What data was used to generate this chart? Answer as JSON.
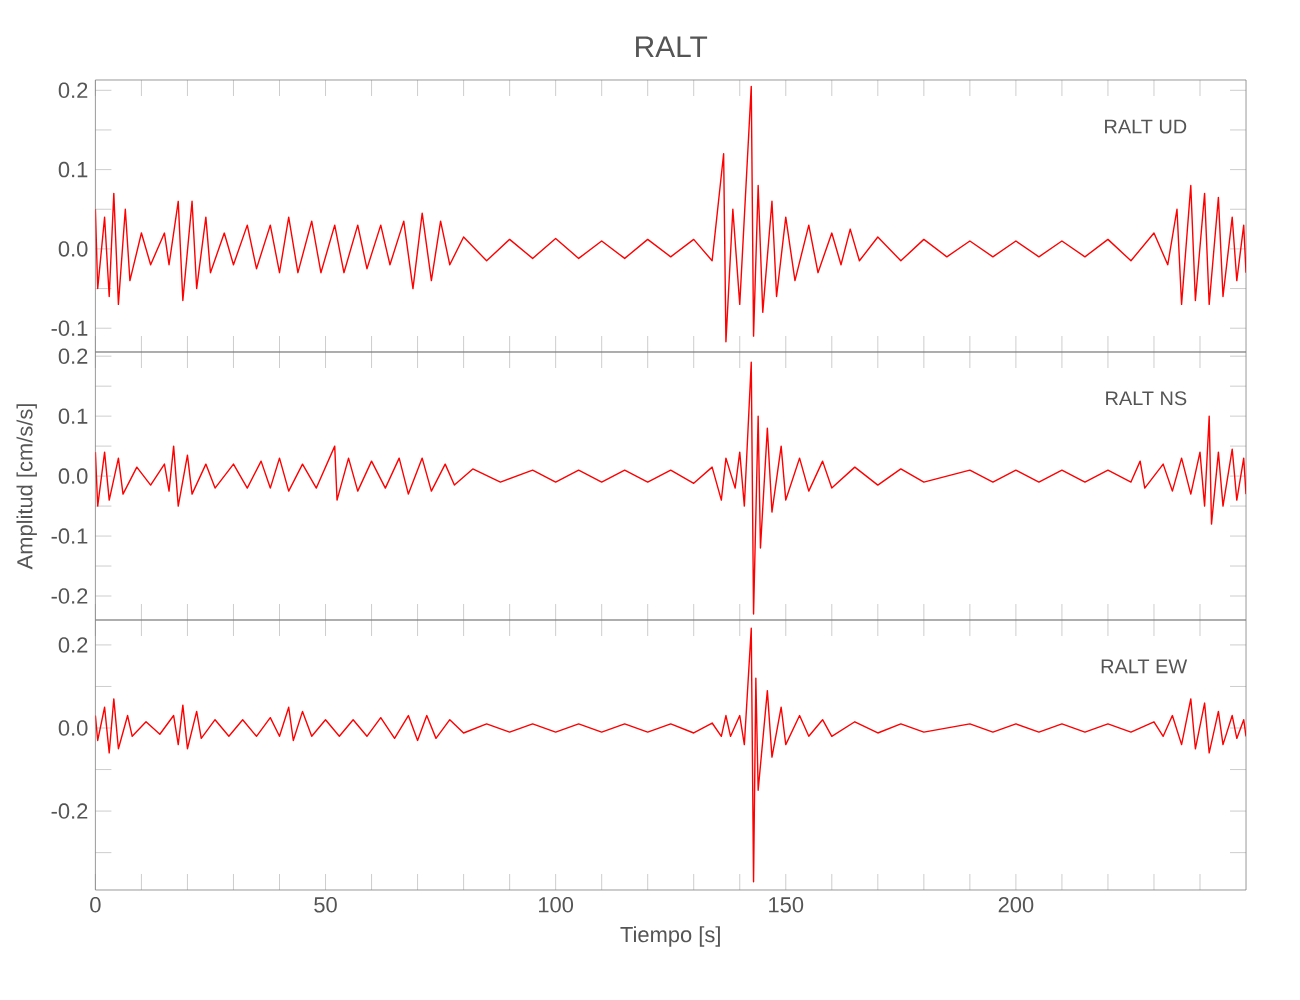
{
  "chart_data": [
    {
      "type": "line",
      "title": "RALT",
      "annotations": [
        "RALT   UD"
      ],
      "color": "#ff0000",
      "marker": "none",
      "tick_labels": "y",
      "xlim": [
        0,
        250
      ],
      "ylim": [
        -0.13,
        0.213
      ],
      "xticks": [
        0,
        {
          "value": 10,
          "label": null
        },
        {
          "value": 20,
          "label": null
        },
        {
          "value": 30,
          "label": null
        },
        {
          "value": 40,
          "label": null
        },
        50,
        {
          "value": 60,
          "label": null
        },
        {
          "value": 70,
          "label": null
        },
        {
          "value": 80,
          "label": null
        },
        {
          "value": 90,
          "label": null
        },
        100,
        {
          "value": 110,
          "label": null
        },
        {
          "value": 120,
          "label": null
        },
        {
          "value": 130,
          "label": null
        },
        {
          "value": 140,
          "label": null
        },
        150,
        {
          "value": 160,
          "label": null
        },
        {
          "value": 170,
          "label": null
        },
        {
          "value": 180,
          "label": null
        },
        {
          "value": 190,
          "label": null
        },
        200,
        {
          "value": 210,
          "label": null
        },
        {
          "value": 220,
          "label": null
        },
        {
          "value": 230,
          "label": null
        },
        {
          "value": 240,
          "label": null
        }
      ],
      "yticks": [
        -0.1,
        {
          "value": -0.05,
          "label": null
        },
        {
          "value": 0,
          "label": "0.0"
        },
        {
          "value": 0.05,
          "label": null
        },
        0.1,
        {
          "value": 0.15,
          "label": null
        },
        0.2
      ],
      "x": [
        0,
        0.5,
        2,
        3,
        4,
        5,
        6.5,
        7.5,
        10,
        12,
        15,
        16,
        18,
        19,
        21,
        22,
        24,
        25,
        28,
        30,
        33,
        35,
        38,
        40,
        42,
        44,
        47,
        49,
        52,
        54,
        57,
        59,
        62,
        64,
        67,
        69,
        71,
        73,
        75,
        77,
        80,
        85,
        90,
        95,
        100,
        105,
        110,
        115,
        120,
        125,
        130,
        134,
        136.5,
        137,
        138.5,
        140,
        142.5,
        143,
        144,
        145,
        147,
        148,
        150,
        152,
        155,
        157,
        160,
        162,
        164,
        166,
        170,
        175,
        180,
        185,
        190,
        195,
        200,
        205,
        210,
        215,
        220,
        225,
        230,
        233,
        235,
        236,
        238,
        239,
        241,
        242,
        244,
        245,
        247,
        248,
        249.5,
        250
      ],
      "values": [
        0.05,
        -0.05,
        0.04,
        -0.06,
        0.07,
        -0.07,
        0.05,
        -0.04,
        0.02,
        -0.02,
        0.02,
        -0.02,
        0.06,
        -0.065,
        0.06,
        -0.05,
        0.04,
        -0.03,
        0.02,
        -0.02,
        0.03,
        -0.025,
        0.03,
        -0.03,
        0.04,
        -0.03,
        0.035,
        -0.03,
        0.03,
        -0.03,
        0.03,
        -0.025,
        0.03,
        -0.02,
        0.035,
        -0.05,
        0.045,
        -0.04,
        0.035,
        -0.02,
        0.015,
        -0.015,
        0.012,
        -0.012,
        0.013,
        -0.012,
        0.01,
        -0.012,
        0.012,
        -0.01,
        0.012,
        -0.015,
        0.12,
        -0.117,
        0.05,
        -0.07,
        0.205,
        -0.11,
        0.08,
        -0.08,
        0.06,
        -0.06,
        0.04,
        -0.04,
        0.03,
        -0.03,
        0.02,
        -0.02,
        0.025,
        -0.015,
        0.015,
        -0.015,
        0.012,
        -0.01,
        0.01,
        -0.01,
        0.01,
        -0.01,
        0.01,
        -0.01,
        0.012,
        -0.015,
        0.02,
        -0.02,
        0.05,
        -0.07,
        0.08,
        -0.065,
        0.07,
        -0.07,
        0.065,
        -0.06,
        0.04,
        -0.04,
        0.03,
        -0.03
      ]
    },
    {
      "type": "line",
      "ylabel": "Amplitud [cm/s/s]",
      "annotations": [
        "RALT   NS"
      ],
      "color": "#ff0000",
      "marker": "none",
      "tick_labels": "y",
      "xlim": [
        0,
        250
      ],
      "ylim": [
        -0.24,
        0.207
      ],
      "xticks": [
        0,
        {
          "value": 10,
          "label": null
        },
        {
          "value": 20,
          "label": null
        },
        {
          "value": 30,
          "label": null
        },
        {
          "value": 40,
          "label": null
        },
        50,
        {
          "value": 60,
          "label": null
        },
        {
          "value": 70,
          "label": null
        },
        {
          "value": 80,
          "label": null
        },
        {
          "value": 90,
          "label": null
        },
        100,
        {
          "value": 110,
          "label": null
        },
        {
          "value": 120,
          "label": null
        },
        {
          "value": 130,
          "label": null
        },
        {
          "value": 140,
          "label": null
        },
        150,
        {
          "value": 160,
          "label": null
        },
        {
          "value": 170,
          "label": null
        },
        {
          "value": 180,
          "label": null
        },
        {
          "value": 190,
          "label": null
        },
        200,
        {
          "value": 210,
          "label": null
        },
        {
          "value": 220,
          "label": null
        },
        {
          "value": 230,
          "label": null
        },
        {
          "value": 240,
          "label": null
        }
      ],
      "yticks": [
        -0.2,
        {
          "value": -0.15,
          "label": null
        },
        -0.1,
        {
          "value": -0.05,
          "label": null
        },
        {
          "value": 0,
          "label": "0.0"
        },
        {
          "value": 0.05,
          "label": null
        },
        0.1,
        {
          "value": 0.15,
          "label": null
        },
        0.2
      ],
      "x": [
        0,
        0.5,
        2,
        3,
        5,
        6,
        9,
        12,
        15,
        16,
        17,
        18,
        20,
        21,
        24,
        26,
        30,
        33,
        36,
        38,
        40,
        42,
        45,
        48,
        52,
        52.5,
        55,
        57,
        60,
        63,
        66,
        68,
        71,
        73,
        76,
        78,
        82,
        88,
        95,
        100,
        105,
        110,
        115,
        120,
        125,
        130,
        134,
        136,
        137,
        139,
        140,
        141,
        142.5,
        143,
        144,
        144.5,
        146,
        147,
        149,
        150,
        153,
        155,
        158,
        160,
        165,
        170,
        175,
        180,
        190,
        195,
        200,
        205,
        210,
        215,
        220,
        225,
        227,
        228,
        232,
        234,
        236,
        238,
        240,
        241,
        242,
        242.5,
        244,
        245,
        247,
        248,
        249.5,
        250
      ],
      "values": [
        0.04,
        -0.05,
        0.04,
        -0.04,
        0.03,
        -0.03,
        0.015,
        -0.015,
        0.02,
        -0.025,
        0.05,
        -0.05,
        0.035,
        -0.03,
        0.02,
        -0.02,
        0.02,
        -0.02,
        0.025,
        -0.02,
        0.03,
        -0.025,
        0.02,
        -0.02,
        0.05,
        -0.04,
        0.03,
        -0.025,
        0.025,
        -0.02,
        0.03,
        -0.03,
        0.03,
        -0.025,
        0.02,
        -0.015,
        0.012,
        -0.01,
        0.01,
        -0.01,
        0.01,
        -0.01,
        0.01,
        -0.01,
        0.01,
        -0.012,
        0.015,
        -0.04,
        0.03,
        -0.02,
        0.04,
        -0.05,
        0.19,
        -0.23,
        0.1,
        -0.12,
        0.08,
        -0.06,
        0.05,
        -0.04,
        0.03,
        -0.025,
        0.025,
        -0.02,
        0.015,
        -0.015,
        0.012,
        -0.01,
        0.01,
        -0.01,
        0.01,
        -0.01,
        0.01,
        -0.01,
        0.01,
        -0.01,
        0.025,
        -0.02,
        0.02,
        -0.025,
        0.03,
        -0.03,
        0.04,
        -0.05,
        0.1,
        -0.08,
        0.04,
        -0.05,
        0.045,
        -0.04,
        0.03,
        -0.03
      ]
    },
    {
      "type": "line",
      "xlabel": "Tiempo [s]",
      "annotations": [
        "RALT   EW"
      ],
      "color": "#ff0000",
      "marker": "none",
      "xlim": [
        0,
        250
      ],
      "ylim": [
        -0.39,
        0.26
      ],
      "xticks": [
        0,
        {
          "value": 10,
          "label": null
        },
        {
          "value": 20,
          "label": null
        },
        {
          "value": 30,
          "label": null
        },
        {
          "value": 40,
          "label": null
        },
        50,
        {
          "value": 60,
          "label": null
        },
        {
          "value": 70,
          "label": null
        },
        {
          "value": 80,
          "label": null
        },
        {
          "value": 90,
          "label": null
        },
        100,
        {
          "value": 110,
          "label": null
        },
        {
          "value": 120,
          "label": null
        },
        {
          "value": 130,
          "label": null
        },
        {
          "value": 140,
          "label": null
        },
        150,
        {
          "value": 160,
          "label": null
        },
        {
          "value": 170,
          "label": null
        },
        {
          "value": 180,
          "label": null
        },
        {
          "value": 190,
          "label": null
        },
        200,
        {
          "value": 210,
          "label": null
        },
        {
          "value": 220,
          "label": null
        },
        {
          "value": 230,
          "label": null
        },
        {
          "value": 240,
          "label": null
        }
      ],
      "yticks": [
        {
          "value": -0.3,
          "label": null
        },
        -0.2,
        {
          "value": -0.1,
          "label": null
        },
        {
          "value": 0,
          "label": "0.0"
        },
        {
          "value": 0.1,
          "label": null
        },
        0.2
      ],
      "x": [
        0,
        0.5,
        2,
        3,
        4,
        5,
        7,
        8,
        11,
        14,
        17,
        18,
        19,
        20,
        22,
        23,
        26,
        29,
        32,
        35,
        38,
        40,
        42,
        43,
        45,
        47,
        50,
        53,
        56,
        59,
        62,
        65,
        68,
        70,
        72,
        74,
        77,
        80,
        85,
        90,
        95,
        100,
        105,
        110,
        115,
        120,
        125,
        130,
        134,
        136,
        137,
        138,
        140,
        141,
        142.5,
        143,
        143.5,
        144,
        146,
        147,
        149,
        150,
        153,
        155,
        158,
        160,
        165,
        170,
        175,
        180,
        190,
        195,
        200,
        205,
        210,
        215,
        220,
        225,
        230,
        232,
        234,
        236,
        238,
        239,
        241,
        242,
        244,
        245,
        247,
        248,
        249.5,
        250
      ],
      "values": [
        0.03,
        -0.03,
        0.05,
        -0.06,
        0.07,
        -0.05,
        0.03,
        -0.02,
        0.015,
        -0.015,
        0.03,
        -0.04,
        0.055,
        -0.05,
        0.04,
        -0.025,
        0.02,
        -0.02,
        0.02,
        -0.02,
        0.025,
        -0.02,
        0.05,
        -0.03,
        0.04,
        -0.02,
        0.02,
        -0.02,
        0.02,
        -0.02,
        0.025,
        -0.025,
        0.03,
        -0.03,
        0.03,
        -0.025,
        0.02,
        -0.012,
        0.01,
        -0.01,
        0.01,
        -0.01,
        0.01,
        -0.01,
        0.01,
        -0.01,
        0.01,
        -0.012,
        0.012,
        -0.02,
        0.03,
        -0.02,
        0.03,
        -0.04,
        0.24,
        -0.37,
        0.12,
        -0.15,
        0.09,
        -0.07,
        0.05,
        -0.04,
        0.03,
        -0.02,
        0.02,
        -0.02,
        0.015,
        -0.012,
        0.01,
        -0.01,
        0.01,
        -0.01,
        0.01,
        -0.01,
        0.01,
        -0.01,
        0.01,
        -0.01,
        0.015,
        -0.02,
        0.03,
        -0.04,
        0.07,
        -0.05,
        0.06,
        -0.06,
        0.04,
        -0.04,
        0.03,
        -0.025,
        0.02,
        -0.02
      ]
    }
  ]
}
